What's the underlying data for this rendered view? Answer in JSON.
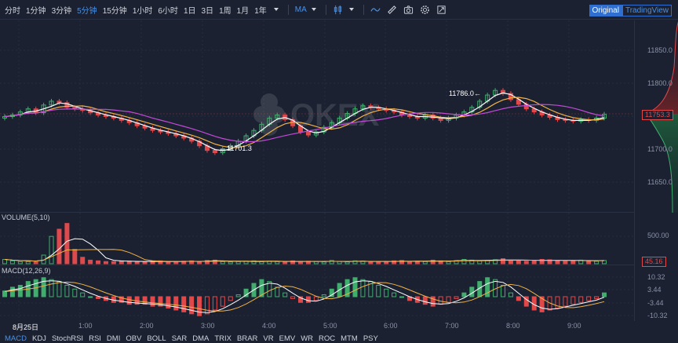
{
  "toolbar": {
    "timeframes": [
      "分时",
      "1分钟",
      "3分钟",
      "5分钟",
      "15分钟",
      "1小时",
      "6小时",
      "1日",
      "3日",
      "1周",
      "1月",
      "1年"
    ],
    "active_timeframe": "5分钟",
    "indicator_label": "MA",
    "view_original": "Original",
    "view_tradingview": "TradingView"
  },
  "watermark": "OKEX",
  "main_chart": {
    "y_ticks": [
      "11850.0",
      "11800.0",
      "11753.3",
      "11700.0",
      "11650.0"
    ],
    "current_price": "11753.3",
    "high_label": "11786.0",
    "low_label": "11701.3",
    "high_arrow": "←",
    "low_arrow": "←"
  },
  "volume_pane": {
    "title": "VOLUME(5,10)",
    "y_tick": "500.00",
    "current_value": "45.16"
  },
  "macd_pane": {
    "title": "MACD(12,26,9)",
    "y_ticks": [
      "10.32",
      "3.44",
      "-3.44",
      "-10.32"
    ]
  },
  "x_axis": [
    "8月25日",
    "1:00",
    "2:00",
    "3:00",
    "4:00",
    "5:00",
    "6:00",
    "7:00",
    "8:00",
    "9:00"
  ],
  "indicators": [
    "MACD",
    "KDJ",
    "StochRSI",
    "RSI",
    "DMI",
    "OBV",
    "BOLL",
    "SAR",
    "DMA",
    "TRIX",
    "BRAR",
    "VR",
    "EMV",
    "WR",
    "ROC",
    "MTM",
    "PSY"
  ],
  "active_indicator": "MACD",
  "chart_data": {
    "type": "candlestick",
    "x": [
      "8月25日",
      "1:00",
      "2:00",
      "3:00",
      "4:00",
      "5:00",
      "6:00",
      "7:00",
      "8:00",
      "9:00"
    ],
    "close_series": [
      11750,
      11752,
      11756,
      11760,
      11755,
      11765,
      11770,
      11768,
      11762,
      11760,
      11758,
      11755,
      11752,
      11750,
      11748,
      11745,
      11742,
      11738,
      11735,
      11732,
      11730,
      11728,
      11725,
      11722,
      11718,
      11712,
      11706,
      11703,
      11708,
      11712,
      11718,
      11725,
      11732,
      11740,
      11748,
      11752,
      11746,
      11738,
      11730,
      11726,
      11730,
      11736,
      11742,
      11748,
      11754,
      11760,
      11764,
      11762,
      11760,
      11758,
      11756,
      11752,
      11750,
      11748,
      11752,
      11748,
      11745,
      11748,
      11752,
      11756,
      11762,
      11770,
      11778,
      11784,
      11780,
      11772,
      11766,
      11760,
      11756,
      11752,
      11749,
      11746,
      11745,
      11744,
      11746,
      11745,
      11748,
      11753
    ],
    "volume_series": [
      60,
      40,
      30,
      30,
      25,
      120,
      380,
      480,
      560,
      200,
      90,
      50,
      40,
      30,
      30,
      40,
      35,
      30,
      25,
      30,
      40,
      30,
      25,
      35,
      40,
      30,
      45,
      50,
      30,
      25,
      30,
      35,
      40,
      30,
      35,
      30,
      25,
      40,
      30,
      35,
      30,
      25,
      45,
      30,
      25,
      40,
      35,
      30,
      30,
      25,
      40,
      45,
      30,
      35,
      30,
      50,
      40,
      30,
      45,
      60,
      50,
      40,
      45,
      55,
      70,
      50,
      40,
      35,
      45,
      60,
      55,
      40,
      35,
      45,
      50,
      40,
      35,
      45
    ],
    "macd_hist": [
      3,
      5,
      6,
      8,
      9,
      10,
      9,
      8,
      6,
      4,
      2,
      0,
      -1,
      -2,
      -3,
      -3,
      -4,
      -4,
      -4,
      -5,
      -5,
      -6,
      -7,
      -8,
      -9,
      -10,
      -9,
      -7,
      -5,
      -2,
      1,
      4,
      7,
      9,
      8,
      5,
      2,
      -1,
      -3,
      -3,
      -2,
      1,
      4,
      7,
      9,
      10,
      9,
      8,
      6,
      4,
      2,
      0,
      -2,
      -3,
      -4,
      -5,
      -4,
      -3,
      -1,
      2,
      5,
      8,
      10,
      9,
      6,
      2,
      -2,
      -5,
      -7,
      -8,
      -7,
      -6,
      -5,
      -4,
      -3,
      -2,
      -1,
      2
    ],
    "y_ticks_main": [
      11850.0,
      11800.0,
      11700.0,
      11650.0
    ],
    "ylim_main": [
      11625,
      11875
    ]
  }
}
